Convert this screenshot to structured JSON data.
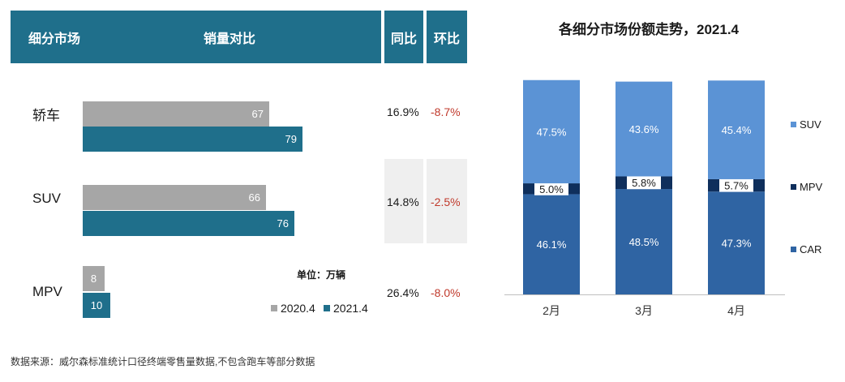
{
  "left_table": {
    "header": {
      "segment": "细分市场",
      "comparison": "销量对比",
      "yoy": "同比",
      "mom": "环比"
    },
    "unit": "单位：万辆",
    "legend": [
      {
        "label": "2020.4",
        "color": "#a6a6a6"
      },
      {
        "label": "2021.4",
        "color": "#1f6f8b"
      }
    ],
    "rows": [
      {
        "segment": "轿车",
        "v2020": "67",
        "v2021": "79",
        "yoy": "16.9%",
        "mom": "-8.7%"
      },
      {
        "segment": "SUV",
        "v2020": "66",
        "v2021": "76",
        "yoy": "14.8%",
        "mom": "-2.5%"
      },
      {
        "segment": "MPV",
        "v2020": "8",
        "v2021": "10",
        "yoy": "26.4%",
        "mom": "-8.0%"
      }
    ]
  },
  "source": "数据来源：威尔森标准统计口径终端零售量数据,不包含跑车等部分数据",
  "chart_data": [
    {
      "type": "bar",
      "orientation": "horizontal",
      "title": "销量对比",
      "unit": "万辆",
      "categories": [
        "轿车",
        "SUV",
        "MPV"
      ],
      "series": [
        {
          "name": "2020.4",
          "values": [
            67,
            66,
            8
          ],
          "color": "#a6a6a6"
        },
        {
          "name": "2021.4",
          "values": [
            79,
            76,
            10
          ],
          "color": "#1f6f8b"
        }
      ],
      "yoy": [
        "16.9%",
        "14.8%",
        "26.4%"
      ],
      "mom": [
        "-8.7%",
        "-2.5%",
        "-8.0%"
      ]
    },
    {
      "type": "bar",
      "stacked": true,
      "title": "各细分市场份额走势，2021.4",
      "categories": [
        "2月",
        "3月",
        "4月"
      ],
      "series": [
        {
          "name": "CAR",
          "values": [
            46.1,
            48.5,
            47.3
          ],
          "labels": [
            "46.1%",
            "48.5%",
            "47.3%"
          ],
          "color": "#2f64a3"
        },
        {
          "name": "MPV",
          "values": [
            5.0,
            5.8,
            5.7
          ],
          "labels": [
            "5.0%",
            "5.8%",
            "5.7%"
          ],
          "color": "#0f2f5c"
        },
        {
          "name": "SUV",
          "values": [
            47.5,
            43.6,
            45.4
          ],
          "labels": [
            "47.5%",
            "43.6%",
            "45.4%"
          ],
          "color": "#5b93d5"
        }
      ],
      "legend_order": [
        "SUV",
        "MPV",
        "CAR"
      ],
      "ylim": [
        0,
        100
      ],
      "legend": "right"
    }
  ]
}
